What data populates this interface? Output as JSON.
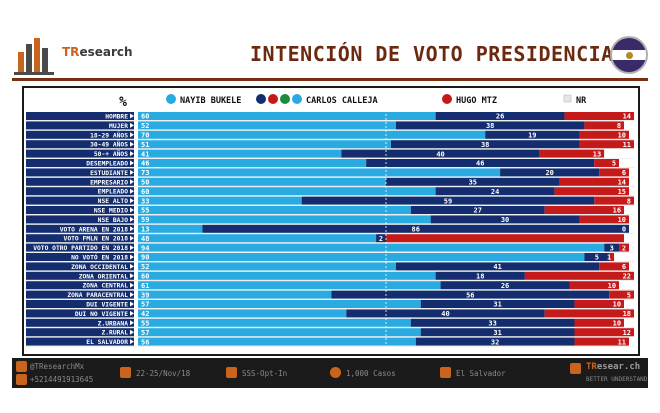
{
  "header": {
    "logo_text_tr": "TR",
    "logo_text_rest": "esearch",
    "title": "INTENCIÓN DE VOTO PRESIDENCIAL"
  },
  "colors": {
    "bukele": "#29abe2",
    "calleja": "#132d6e",
    "hugo": "#c41a1a",
    "nr": "#ffffff",
    "row_label_bg": "#132d6e",
    "header_dark": "#6b2a10",
    "accent": "#c8641e"
  },
  "chart_data": {
    "type": "bar",
    "stacked": true,
    "orientation": "horizontal",
    "title": "INTENCIÓN DE VOTO PRESIDENCIAL",
    "corner_label": "%",
    "xlim": [
      0,
      100
    ],
    "legend_position": "top",
    "categories": [
      "HOMBRE",
      "MUJER",
      "18-29 AÑOS",
      "30-49 AÑOS",
      "50-+ AÑOS",
      "DESEMPLEADO",
      "ESTUDIANTE",
      "EMPRESARIO",
      "EMPLEADO",
      "NSE ALTO",
      "NSE MEDIO",
      "NSE BAJO",
      "VOTO ARENA EN 2018",
      "VOTO FMLN EN 2018",
      "VOTO OTRO PARTIDO EN 2018",
      "NO VOTÓ EN 2018",
      "ZONA OCCIDENTAL",
      "ZONA ORIENTAL",
      "ZONA CENTRAL",
      "ZONA PARACENTRAL",
      "DUI VIGENTE",
      "DUI NO VIGENTE",
      "Z.URBANA",
      "Z.RURAL",
      "EL SALVADOR"
    ],
    "series": [
      {
        "name": "NAYIB BUKELE",
        "icon": "gana-party-icon",
        "values": [
          60,
          52,
          70,
          51,
          41,
          46,
          73,
          50,
          60,
          33,
          55,
          59,
          13,
          48,
          94,
          90,
          52,
          60,
          61,
          39,
          57,
          42,
          55,
          57,
          56
        ]
      },
      {
        "name": "CARLOS CALLEJA",
        "icon": "arena-coalition-icon",
        "values": [
          26,
          38,
          19,
          38,
          40,
          46,
          20,
          35,
          24,
          59,
          27,
          30,
          86,
          2,
          3,
          5,
          41,
          18,
          26,
          56,
          31,
          40,
          33,
          31,
          32
        ]
      },
      {
        "name": "HUGO MTZ",
        "icon": "fmln-party-icon",
        "values": [
          14,
          8,
          10,
          11,
          13,
          5,
          6,
          14,
          15,
          8,
          16,
          10,
          0,
          48,
          2,
          1,
          6,
          22,
          10,
          5,
          10,
          18,
          10,
          12,
          11
        ]
      },
      {
        "name": "NR",
        "values": [
          0,
          2,
          1,
          0,
          6,
          3,
          1,
          1,
          1,
          0,
          2,
          1,
          1,
          2,
          1,
          4,
          1,
          0,
          3,
          0,
          2,
          0,
          2,
          0,
          1
        ]
      }
    ],
    "calleja_labels_shown": [
      true,
      true,
      true,
      true,
      true,
      true,
      true,
      true,
      true,
      true,
      true,
      true,
      true,
      true,
      true,
      true,
      true,
      true,
      true,
      true,
      true,
      true,
      true,
      true,
      true
    ],
    "hugo_labels_shown": [
      true,
      true,
      true,
      true,
      true,
      true,
      true,
      true,
      true,
      true,
      true,
      true,
      true,
      false,
      true,
      true,
      true,
      true,
      true,
      true,
      true,
      true,
      true,
      true,
      true
    ]
  },
  "footer": {
    "twitter": "@TResearchMx",
    "whatsapp": "+5214491913645",
    "dates": "22-25/Nov/18",
    "method": "SSS-Opt-In",
    "sample": "1,000 Casos",
    "country": "El Salvador",
    "brand_a": "TR",
    "brand_b": "esear.ch",
    "tagline": "BETTER UNDERSTAND"
  }
}
